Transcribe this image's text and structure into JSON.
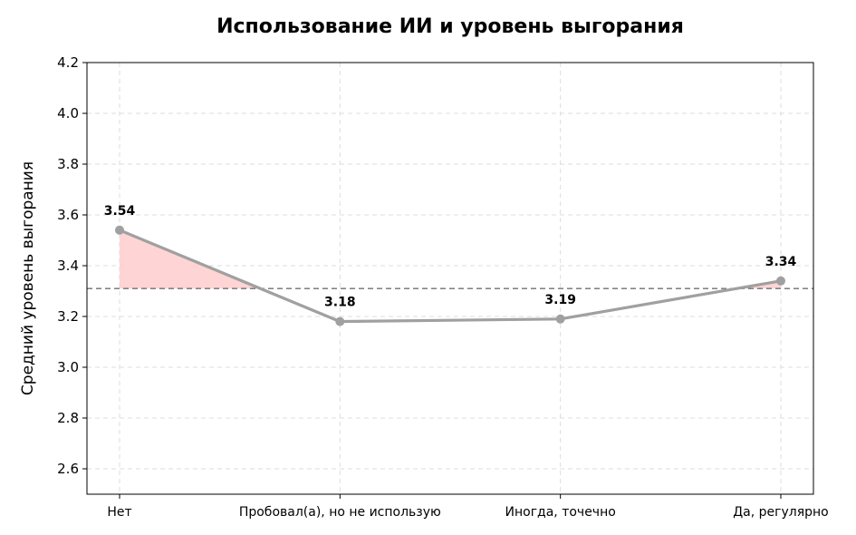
{
  "chart_data": {
    "type": "line",
    "title": "Использование ИИ и уровень выгорания",
    "xlabel": "",
    "ylabel": "Средний уровень выгорания",
    "categories": [
      "Нет",
      "Пробовал(а), но не использую",
      "Иногда, точечно",
      "Да, регулярно"
    ],
    "series": [
      {
        "values": [
          3.54,
          3.18,
          3.19,
          3.34
        ],
        "data_labels": [
          "3.54",
          "3.18",
          "3.19",
          "3.34"
        ]
      }
    ],
    "reference_line": {
      "value": 3.31,
      "style": "dashed"
    },
    "fill_above_reference": true,
    "ylim": [
      2.5,
      4.2
    ],
    "yticks": [
      "2.6",
      "2.8",
      "3.0",
      "3.2",
      "3.4",
      "3.6",
      "3.8",
      "4.0",
      "4.2"
    ],
    "grid": true,
    "colors": {
      "line": "#a0a0a0",
      "marker": "#a0a0a0",
      "fill": "#ffcccc",
      "reference": "#707070",
      "grid": "#dddddd"
    }
  }
}
